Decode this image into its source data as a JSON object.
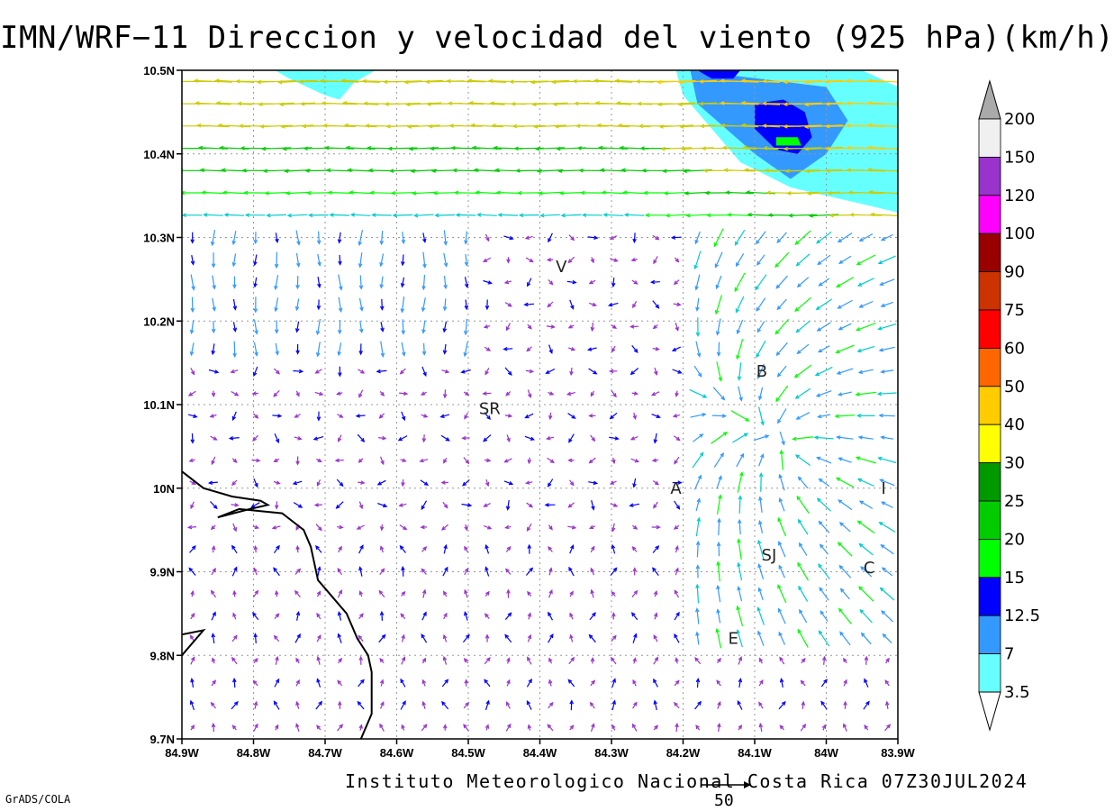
{
  "title": "IMN/WRF−11 Direccion y velocidad del viento (925 hPa)(km/h)",
  "footer": "Instituto Meteorologico Nacional Costa Rica 07Z30JUL2024",
  "credit": "GrADS/COLA",
  "reference_vector": {
    "value": "50"
  },
  "map": {
    "lon_range": [
      -84.9,
      -83.9
    ],
    "lat_range": [
      9.7,
      10.5
    ],
    "grid": true,
    "x_ticks": [
      {
        "lon": -84.9,
        "label": "84.9W"
      },
      {
        "lon": -84.8,
        "label": "84.8W"
      },
      {
        "lon": -84.7,
        "label": "84.7W"
      },
      {
        "lon": -84.6,
        "label": "84.6W"
      },
      {
        "lon": -84.5,
        "label": "84.5W"
      },
      {
        "lon": -84.4,
        "label": "84.4W"
      },
      {
        "lon": -84.3,
        "label": "84.3W"
      },
      {
        "lon": -84.2,
        "label": "84.2W"
      },
      {
        "lon": -84.1,
        "label": "84.1W"
      },
      {
        "lon": -84.0,
        "label": "84W"
      },
      {
        "lon": -83.9,
        "label": "83.9W"
      }
    ],
    "y_ticks": [
      {
        "lat": 10.5,
        "label": "10.5N"
      },
      {
        "lat": 10.4,
        "label": "10.4N"
      },
      {
        "lat": 10.3,
        "label": "10.3N"
      },
      {
        "lat": 10.2,
        "label": "10.2N"
      },
      {
        "lat": 10.1,
        "label": "10.1N"
      },
      {
        "lat": 10.0,
        "label": "10N"
      },
      {
        "lat": 9.9,
        "label": "9.9N"
      },
      {
        "lat": 9.8,
        "label": "9.8N"
      },
      {
        "lat": 9.7,
        "label": "9.7N"
      }
    ],
    "cities": [
      {
        "label": "V",
        "lon": -84.37,
        "lat": 10.265
      },
      {
        "label": "B",
        "lon": -84.09,
        "lat": 10.14
      },
      {
        "label": "SR",
        "lon": -84.47,
        "lat": 10.095
      },
      {
        "label": "A",
        "lon": -84.21,
        "lat": 10.0
      },
      {
        "label": "I",
        "lon": -83.92,
        "lat": 10.0
      },
      {
        "label": "SJ",
        "lon": -84.08,
        "lat": 9.92
      },
      {
        "label": "C",
        "lon": -83.94,
        "lat": 9.905
      },
      {
        "label": "E",
        "lon": -84.13,
        "lat": 9.82
      }
    ],
    "coastline_lonlat": [
      [
        -84.9,
        10.02
      ],
      [
        -84.87,
        10.0
      ],
      [
        -84.83,
        9.99
      ],
      [
        -84.79,
        9.985
      ],
      [
        -84.78,
        9.98
      ],
      [
        -84.805,
        9.975
      ],
      [
        -84.85,
        9.965
      ],
      [
        -84.82,
        9.975
      ],
      [
        -84.76,
        9.97
      ],
      [
        -84.73,
        9.95
      ],
      [
        -84.72,
        9.93
      ],
      [
        -84.71,
        9.89
      ],
      [
        -84.69,
        9.87
      ],
      [
        -84.67,
        9.85
      ],
      [
        -84.655,
        9.82
      ],
      [
        -84.64,
        9.8
      ],
      [
        -84.635,
        9.78
      ],
      [
        -84.635,
        9.73
      ],
      [
        -84.65,
        9.7
      ]
    ],
    "coastline2_lonlat": [
      [
        -84.9,
        9.8
      ],
      [
        -84.87,
        9.83
      ],
      [
        -84.9,
        9.825
      ]
    ]
  },
  "colorbar": {
    "labels": [
      "200",
      "150",
      "120",
      "100",
      "90",
      "75",
      "60",
      "50",
      "40",
      "30",
      "25",
      "20",
      "15",
      "12.5",
      "7",
      "3.5"
    ],
    "colors": [
      "#f0f0f0",
      "#9933cc",
      "#ff00ff",
      "#990000",
      "#cc3300",
      "#ff0000",
      "#ff6600",
      "#ffcc00",
      "#ffff00",
      "#009900",
      "#00cc00",
      "#00ff00",
      "#0000ff",
      "#3399ff",
      "#66ffff"
    ],
    "top_cap_color": "#aaaaaa",
    "bottom_cap_color": "#ffffff"
  },
  "shading": [
    {
      "level": "3.5",
      "color": "#66ffff",
      "areas": [
        {
          "name": "ne",
          "lonlat": [
            [
              -84.21,
              10.5
            ],
            [
              -83.95,
              10.5
            ],
            [
              -83.9,
              10.48
            ],
            [
              -83.9,
              10.33
            ],
            [
              -83.95,
              10.34
            ],
            [
              -84.05,
              10.36
            ],
            [
              -84.12,
              10.39
            ],
            [
              -84.16,
              10.43
            ],
            [
              -84.2,
              10.47
            ]
          ]
        },
        {
          "name": "nw",
          "lonlat": [
            [
              -84.77,
              10.5
            ],
            [
              -84.63,
              10.5
            ],
            [
              -84.66,
              10.485
            ],
            [
              -84.68,
              10.465
            ],
            [
              -84.7,
              10.47
            ],
            [
              -84.75,
              10.49
            ]
          ]
        }
      ]
    },
    {
      "level": "7",
      "color": "#3399ff",
      "areas": [
        {
          "name": "ne",
          "lonlat": [
            [
              -84.19,
              10.5
            ],
            [
              -84.0,
              10.48
            ],
            [
              -83.97,
              10.44
            ],
            [
              -84.0,
              10.4
            ],
            [
              -84.05,
              10.37
            ],
            [
              -84.1,
              10.4
            ],
            [
              -84.14,
              10.43
            ],
            [
              -84.18,
              10.46
            ]
          ]
        }
      ]
    },
    {
      "level": "12.5",
      "color": "#0000ff",
      "areas": [
        {
          "name": "ne1",
          "lonlat": [
            [
              -84.1,
              10.46
            ],
            [
              -84.06,
              10.465
            ],
            [
              -84.03,
              10.45
            ],
            [
              -84.02,
              10.42
            ],
            [
              -84.04,
              10.4
            ],
            [
              -84.07,
              10.405
            ],
            [
              -84.1,
              10.43
            ]
          ]
        },
        {
          "name": "ne2",
          "lonlat": [
            [
              -84.18,
              10.5
            ],
            [
              -84.12,
              10.5
            ],
            [
              -84.13,
              10.49
            ],
            [
              -84.16,
              10.49
            ]
          ]
        }
      ]
    },
    {
      "level": "15",
      "color": "#00ff00",
      "areas": [
        {
          "name": "ne",
          "lonlat": [
            [
              -84.07,
              10.42
            ],
            [
              -84.04,
              10.42
            ],
            [
              -84.035,
              10.41
            ],
            [
              -84.07,
              10.41
            ]
          ]
        }
      ]
    }
  ]
}
